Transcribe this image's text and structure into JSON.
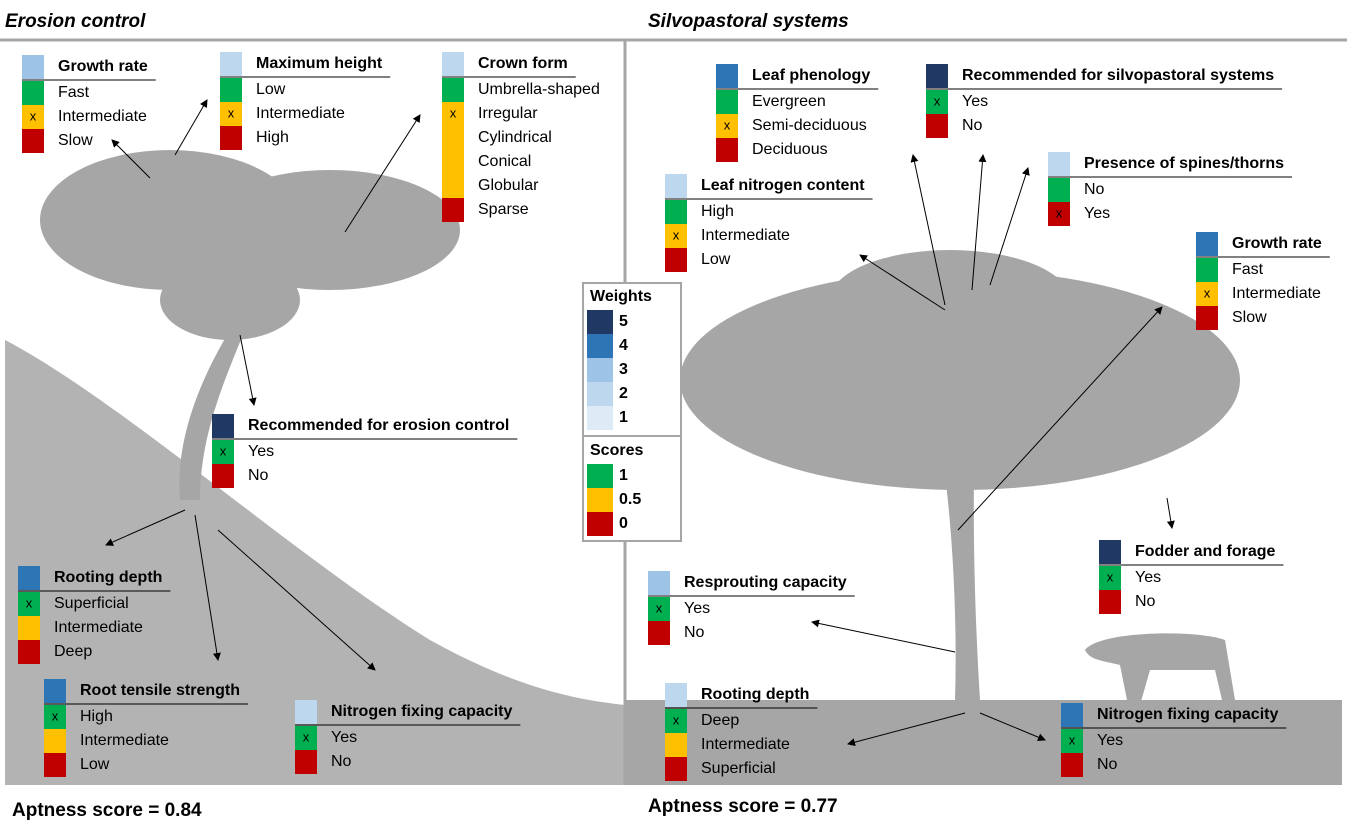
{
  "selected_mark": "x",
  "legend": {
    "weights_title": "Weights",
    "weights": [
      {
        "value": 5,
        "color": "#203864"
      },
      {
        "value": 4,
        "color": "#2e75b6"
      },
      {
        "value": 3,
        "color": "#9dc3e6"
      },
      {
        "value": 2,
        "color": "#bdd7ee"
      },
      {
        "value": 1,
        "color": "#deebf7"
      }
    ],
    "scores_title": "Scores",
    "scores": [
      {
        "value": 1,
        "color": "#00b050"
      },
      {
        "value": 0.5,
        "color": "#ffc000"
      },
      {
        "value": 0,
        "color": "#c00000"
      }
    ]
  },
  "panels": [
    {
      "title": "Erosion control",
      "aptness": "Aptness score = 0.84",
      "traits": [
        {
          "name": "Growth rate",
          "weight": 3,
          "options": [
            {
              "label": "Fast",
              "score": 1
            },
            {
              "label": "Intermediate",
              "score": 0.5,
              "selected": true
            },
            {
              "label": "Slow",
              "score": 0
            }
          ]
        },
        {
          "name": "Maximum height",
          "weight": 2,
          "options": [
            {
              "label": "Low",
              "score": 1
            },
            {
              "label": "Intermediate",
              "score": 0.5,
              "selected": true
            },
            {
              "label": "High",
              "score": 0
            }
          ]
        },
        {
          "name": "Crown form",
          "weight": 2,
          "options": [
            {
              "label": "Umbrella-shaped",
              "score": 1
            },
            {
              "label": "Irregular",
              "score": 0.5,
              "selected": true
            },
            {
              "label": "Cylindrical",
              "score": 0.5
            },
            {
              "label": "Conical",
              "score": 0.5
            },
            {
              "label": "Globular",
              "score": 0.5
            },
            {
              "label": "Sparse",
              "score": 0
            }
          ]
        },
        {
          "name": "Recommended for erosion control",
          "weight": 5,
          "options": [
            {
              "label": "Yes",
              "score": 1,
              "selected": true
            },
            {
              "label": "No",
              "score": 0
            }
          ]
        },
        {
          "name": "Rooting depth",
          "weight": 4,
          "options": [
            {
              "label": "Superficial",
              "score": 1,
              "selected": true
            },
            {
              "label": "Intermediate",
              "score": 0.5
            },
            {
              "label": "Deep",
              "score": 0
            }
          ]
        },
        {
          "name": "Root tensile strength",
          "weight": 4,
          "options": [
            {
              "label": "High",
              "score": 1,
              "selected": true
            },
            {
              "label": "Intermediate",
              "score": 0.5
            },
            {
              "label": "Low",
              "score": 0
            }
          ]
        },
        {
          "name": "Nitrogen fixing capacity",
          "weight": 2,
          "options": [
            {
              "label": "Yes",
              "score": 1,
              "selected": true
            },
            {
              "label": "No",
              "score": 0
            }
          ]
        }
      ]
    },
    {
      "title": "Silvopastoral systems",
      "aptness": "Aptness score = 0.77",
      "traits": [
        {
          "name": "Leaf phenology",
          "weight": 4,
          "options": [
            {
              "label": "Evergreen",
              "score": 1
            },
            {
              "label": "Semi-deciduous",
              "score": 0.5,
              "selected": true
            },
            {
              "label": "Deciduous",
              "score": 0
            }
          ]
        },
        {
          "name": "Recommended for silvopastoral systems",
          "weight": 5,
          "options": [
            {
              "label": "Yes",
              "score": 1,
              "selected": true
            },
            {
              "label": "No",
              "score": 0
            }
          ]
        },
        {
          "name": "Presence of spines/thorns",
          "weight": 2,
          "options": [
            {
              "label": "No",
              "score": 1
            },
            {
              "label": "Yes",
              "score": 0,
              "selected": true
            }
          ]
        },
        {
          "name": "Leaf nitrogen content",
          "weight": 2,
          "options": [
            {
              "label": "High",
              "score": 1
            },
            {
              "label": "Intermediate",
              "score": 0.5,
              "selected": true
            },
            {
              "label": "Low",
              "score": 0
            }
          ]
        },
        {
          "name": "Growth rate",
          "weight": 4,
          "options": [
            {
              "label": "Fast",
              "score": 1
            },
            {
              "label": "Intermediate",
              "score": 0.5,
              "selected": true
            },
            {
              "label": "Slow",
              "score": 0
            }
          ]
        },
        {
          "name": "Fodder and forage",
          "weight": 5,
          "options": [
            {
              "label": "Yes",
              "score": 1,
              "selected": true
            },
            {
              "label": "No",
              "score": 0
            }
          ]
        },
        {
          "name": "Resprouting capacity",
          "weight": 3,
          "options": [
            {
              "label": "Yes",
              "score": 1,
              "selected": true
            },
            {
              "label": "No",
              "score": 0
            }
          ]
        },
        {
          "name": "Rooting depth",
          "weight": 2,
          "options": [
            {
              "label": "Deep",
              "score": 1,
              "selected": true
            },
            {
              "label": "Intermediate",
              "score": 0.5
            },
            {
              "label": "Superficial",
              "score": 0
            }
          ]
        },
        {
          "name": "Nitrogen fixing capacity",
          "weight": 4,
          "options": [
            {
              "label": "Yes",
              "score": 1,
              "selected": true
            },
            {
              "label": "No",
              "score": 0
            }
          ]
        }
      ]
    }
  ]
}
